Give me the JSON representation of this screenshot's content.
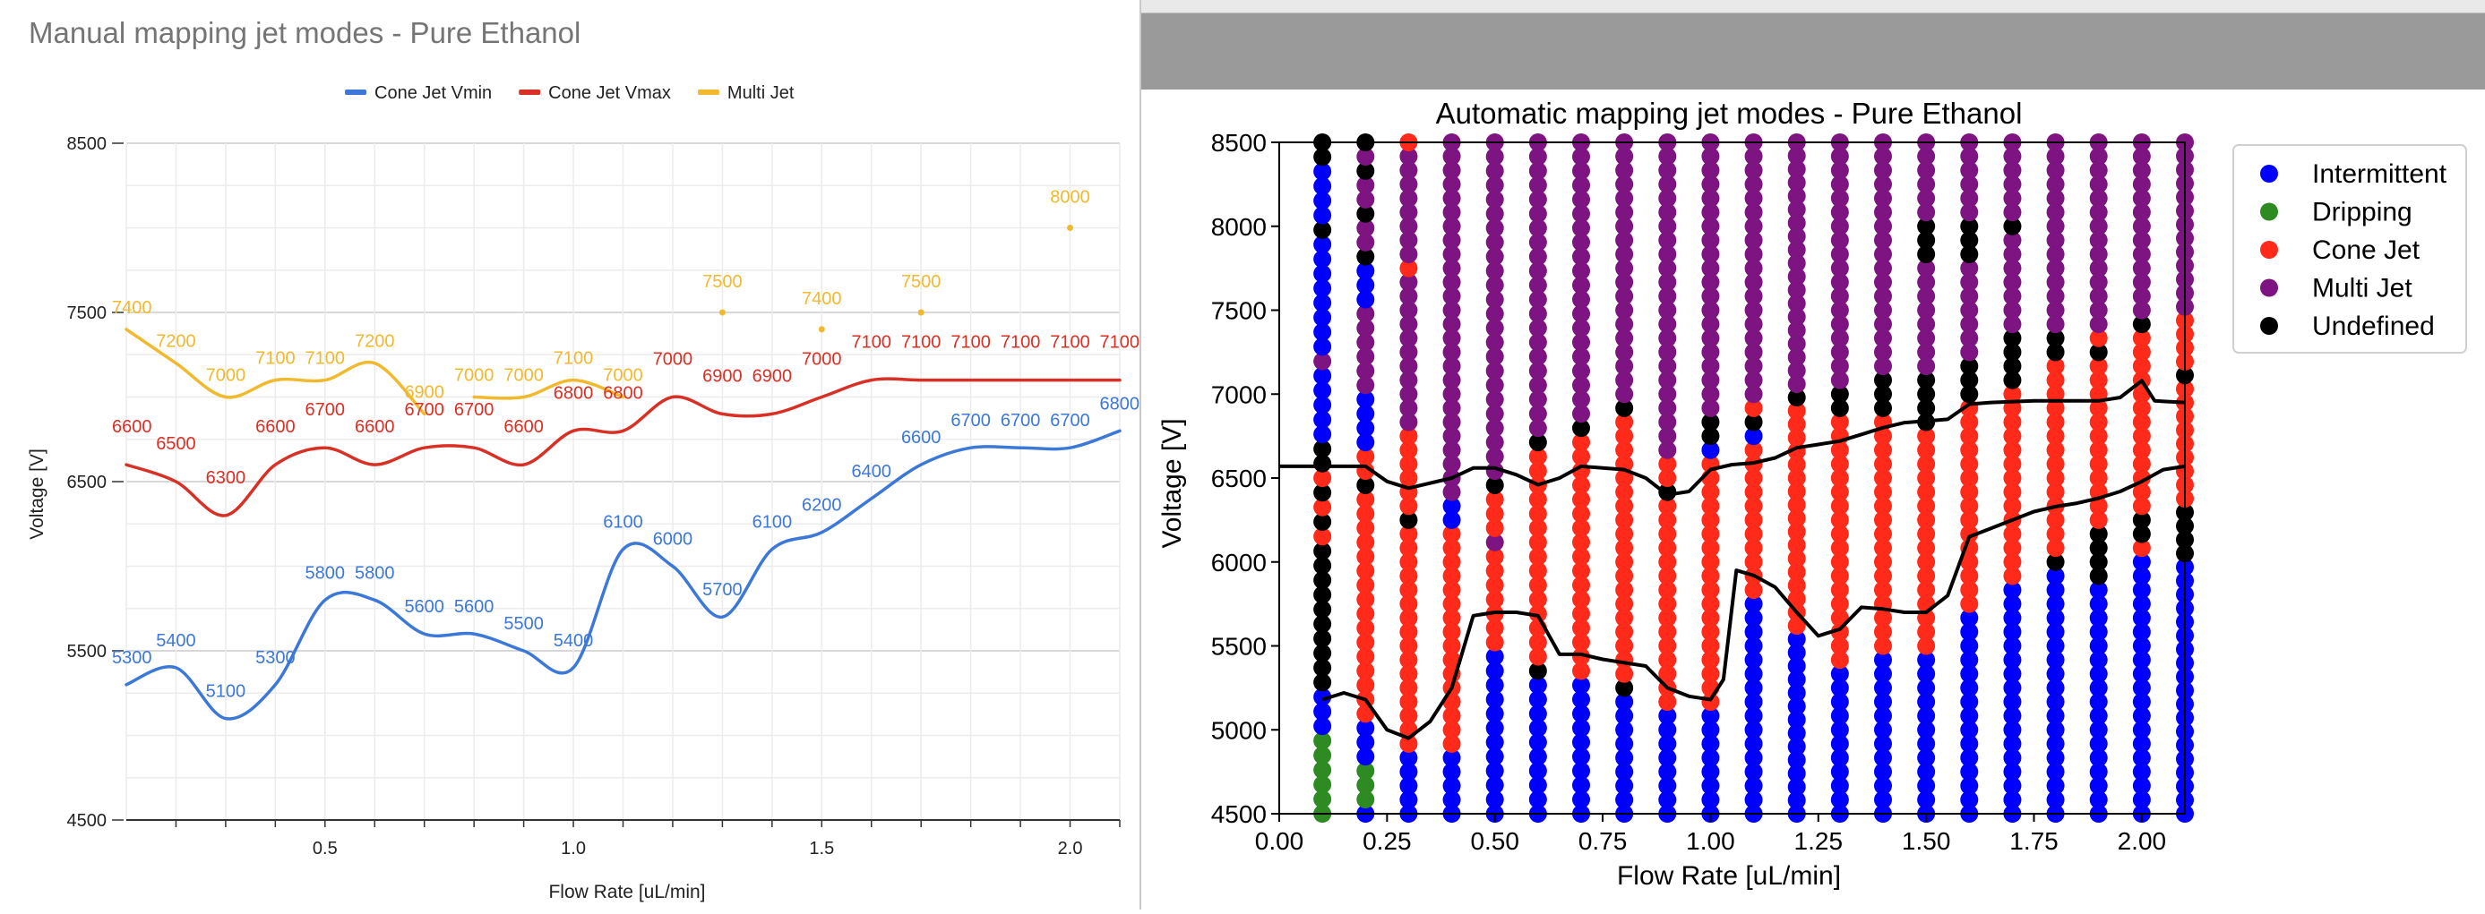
{
  "chart_data": [
    {
      "type": "line",
      "title": "Manual mapping jet modes - Pure Ethanol",
      "xlabel": "Flow Rate [uL/min]",
      "ylabel": "Voltage [V]",
      "xlim": [
        0.1,
        2.1
      ],
      "ylim": [
        4500,
        8500
      ],
      "xticks": [
        0.5,
        1.0,
        1.5,
        2.0
      ],
      "xtick_labels": [
        "0.5",
        "1.0",
        "1.5",
        "2.0"
      ],
      "yticks": [
        4500,
        5500,
        6500,
        7500,
        8500
      ],
      "ytick_labels": [
        "4500",
        "5500",
        "6500",
        "7500",
        "8500"
      ],
      "grid": true,
      "legend_position": "top",
      "series": [
        {
          "name": "Cone Jet Vmin",
          "color": "#3c78d8",
          "x": [
            0.1,
            0.2,
            0.3,
            0.4,
            0.5,
            0.6,
            0.7,
            0.8,
            0.9,
            1.0,
            1.1,
            1.2,
            1.3,
            1.4,
            1.5,
            1.6,
            1.7,
            1.8,
            1.9,
            2.0,
            2.1
          ],
          "values": [
            5300,
            5400,
            5100,
            5300,
            5800,
            5800,
            5600,
            5600,
            5500,
            5400,
            6100,
            6000,
            5700,
            6100,
            6200,
            6400,
            6600,
            6700,
            6700,
            6700,
            6800
          ]
        },
        {
          "name": "Cone Jet Vmax",
          "color": "#d93025",
          "x": [
            0.1,
            0.2,
            0.3,
            0.4,
            0.5,
            0.6,
            0.7,
            0.8,
            0.9,
            1.0,
            1.1,
            1.2,
            1.3,
            1.4,
            1.5,
            1.6,
            1.7,
            1.8,
            1.9,
            2.0,
            2.1
          ],
          "values": [
            6600,
            6500,
            6300,
            6600,
            6700,
            6600,
            6700,
            6700,
            6600,
            6800,
            6800,
            7000,
            6900,
            6900,
            7000,
            7100,
            7100,
            7100,
            7100,
            7100,
            7100
          ]
        },
        {
          "name": "Multi Jet",
          "color": "#f1b92e",
          "segments": [
            {
              "x": [
                0.1,
                0.2,
                0.3,
                0.4,
                0.5,
                0.6,
                0.7
              ],
              "values": [
                7400,
                7200,
                7000,
                7100,
                7100,
                7200,
                6900
              ]
            },
            {
              "x": [
                0.8,
                0.9,
                1.0,
                1.1
              ],
              "values": [
                7000,
                7000,
                7100,
                7000
              ]
            }
          ],
          "points": [
            {
              "x": 1.3,
              "value": 7500
            },
            {
              "x": 1.5,
              "value": 7400
            },
            {
              "x": 1.7,
              "value": 7500
            },
            {
              "x": 2.0,
              "value": 8000
            }
          ]
        }
      ]
    },
    {
      "type": "scatter",
      "title": "Automatic mapping jet modes - Pure Ethanol",
      "xlabel": "Flow Rate [uL/min]",
      "ylabel": "Voltage [V]",
      "xlim": [
        0.0,
        2.1
      ],
      "ylim": [
        4500,
        8500
      ],
      "xticks": [
        0.0,
        0.25,
        0.5,
        0.75,
        1.0,
        1.25,
        1.5,
        1.75,
        2.0
      ],
      "xtick_labels": [
        "0.00",
        "0.25",
        "0.50",
        "0.75",
        "1.00",
        "1.25",
        "1.50",
        "1.75",
        "2.00"
      ],
      "yticks": [
        4500,
        5000,
        5500,
        6000,
        6500,
        7000,
        7500,
        8000,
        8500
      ],
      "ytick_labels": [
        "4500",
        "5000",
        "5500",
        "6000",
        "6500",
        "7000",
        "7500",
        "8000",
        "8500"
      ],
      "grid": false,
      "legend_position": "outside right",
      "categories": [
        {
          "name": "Intermittent",
          "color": "#0000ff"
        },
        {
          "name": "Dripping",
          "color": "#2e8b22"
        },
        {
          "name": "Cone Jet",
          "color": "#ff2a1a"
        },
        {
          "name": "Multi Jet",
          "color": "#7e1481"
        },
        {
          "name": "Undefined",
          "color": "#000000"
        }
      ],
      "x_columns": [
        0.1,
        0.2,
        0.3,
        0.4,
        0.5,
        0.6,
        0.7,
        0.8,
        0.9,
        1.0,
        1.1,
        1.2,
        1.3,
        1.4,
        1.5,
        1.6,
        1.7,
        1.8,
        1.9,
        2.0,
        2.1
      ],
      "voltage_start": 4500,
      "voltage_step": 100,
      "column_codes": [
        "DDDDDDIIIUUUUUUUUUUCUCUCUUIIIIIMIIIIIIIIUIIIIUU",
        "IDDDIIICCCCCCCCCCCCCCCCUCCIIIIMMMMMMIIIUMMUMMUMU",
        "IIIIICCCCCCCCCCCCCCCCUCCCCCCMMMMMMMMMMMCMMMMMMMMC",
        "IIIIICCCCCCCCCCCCCCCCIIMMMMMMMMMMMMMMMMMMMMMMMMMM",
        "IIIIIIIIIIIICCCCCCCMCCCUMMMMMMMMMMMMMMMMMMMMMMMM",
        "IIIIIIIIIIUCCCCCCCCCCCCCCCUMMMMMMMMMMMMMMMMMMMMM",
        "IIIIIIIIIICCCCCCCCCCCCCCCCCUMMMMMMMMMMMMMMMMMMMM",
        "IIIIIIIIIUCCCCCCCCCCCCCCCCCCCUMMMMMMMMMMMMMMMMMMM",
        "IIIIIIIICCCCCCCCCCCCCCCUCCMMMMMMMMMMMMMMMMMMMMMMM",
        "IIIIIIIICCCCCCCCCCCCCCCCCCIUUMMMMMMMMMMMMMMMMMMMM",
        "IIIIIIIIIIIIIIIICCCCCCCCCCCIUCMMMMMMMMMMMMMMMMMMM",
        "IIIIIIIIIIIIIICCCCCCCCCCCCCCCCCUMMMMMMMMMMMMMMMMMMM",
        "IIIIIIIIIIICCCCCCCCCCCCCCCCCCUUMMMMMMMMMMMMMMMMMM",
        "IIIIIIIIIIIICCCCCCCCCCCCCCCCCUUUMMMMMMMMMMMMMMMMM",
        "IIIIIIIIIIIICCCCCCCCCCCCCCCCUUUUMMMMMMMMUUUMMMMMM",
        "IIIIIIIIIIIIIIICCCCCCCCCCCCCCCUUUMMMMMMMUUUMMMMMM",
        "IIIIIIIIIIIIIIIIICCCCCCCCCCCCCCUUUUMMMMMMMUMMMMMM",
        "IIIIIIIIIIIIIIIIIIUCCCCCCCCCCCCCCUUMMMMMMMMMMMMMM",
        "IIIIIIIIIIIIIIIIIUUUUCCCCCCCCCCCCUCMMMMMMMMMMMMMM",
        "IIIIIIIIIIIIIIIIIIICUUCCCCCCCCCCCCCUMMMMMMMMMMMMM",
        "IIIIIIIIIIIIIIIIIIIUUUUCCCCCCCCCUCCCCMMMMMMMMMMMMM"
      ],
      "boundary_lower": [
        {
          "x": 0.1,
          "y": 5180
        },
        {
          "x": 0.15,
          "y": 5220
        },
        {
          "x": 0.2,
          "y": 5180
        },
        {
          "x": 0.25,
          "y": 5000
        },
        {
          "x": 0.3,
          "y": 4950
        },
        {
          "x": 0.35,
          "y": 5050
        },
        {
          "x": 0.4,
          "y": 5250
        },
        {
          "x": 0.45,
          "y": 5680
        },
        {
          "x": 0.5,
          "y": 5700
        },
        {
          "x": 0.55,
          "y": 5700
        },
        {
          "x": 0.6,
          "y": 5680
        },
        {
          "x": 0.65,
          "y": 5450
        },
        {
          "x": 0.7,
          "y": 5450
        },
        {
          "x": 0.75,
          "y": 5420
        },
        {
          "x": 0.8,
          "y": 5400
        },
        {
          "x": 0.85,
          "y": 5380
        },
        {
          "x": 0.9,
          "y": 5250
        },
        {
          "x": 0.95,
          "y": 5200
        },
        {
          "x": 1.0,
          "y": 5180
        },
        {
          "x": 1.03,
          "y": 5300
        },
        {
          "x": 1.06,
          "y": 5950
        },
        {
          "x": 1.1,
          "y": 5920
        },
        {
          "x": 1.15,
          "y": 5850
        },
        {
          "x": 1.2,
          "y": 5700
        },
        {
          "x": 1.25,
          "y": 5560
        },
        {
          "x": 1.3,
          "y": 5600
        },
        {
          "x": 1.35,
          "y": 5730
        },
        {
          "x": 1.4,
          "y": 5720
        },
        {
          "x": 1.45,
          "y": 5700
        },
        {
          "x": 1.5,
          "y": 5700
        },
        {
          "x": 1.55,
          "y": 5800
        },
        {
          "x": 1.6,
          "y": 6150
        },
        {
          "x": 1.65,
          "y": 6200
        },
        {
          "x": 1.7,
          "y": 6250
        },
        {
          "x": 1.75,
          "y": 6300
        },
        {
          "x": 1.8,
          "y": 6330
        },
        {
          "x": 1.85,
          "y": 6350
        },
        {
          "x": 1.9,
          "y": 6380
        },
        {
          "x": 1.95,
          "y": 6420
        },
        {
          "x": 2.0,
          "y": 6480
        },
        {
          "x": 2.05,
          "y": 6550
        },
        {
          "x": 2.1,
          "y": 6570
        }
      ],
      "boundary_upper": [
        {
          "x": 0.0,
          "y": 6570
        },
        {
          "x": 0.2,
          "y": 6570
        },
        {
          "x": 0.25,
          "y": 6480
        },
        {
          "x": 0.3,
          "y": 6440
        },
        {
          "x": 0.4,
          "y": 6500
        },
        {
          "x": 0.45,
          "y": 6560
        },
        {
          "x": 0.5,
          "y": 6560
        },
        {
          "x": 0.55,
          "y": 6520
        },
        {
          "x": 0.6,
          "y": 6460
        },
        {
          "x": 0.65,
          "y": 6500
        },
        {
          "x": 0.7,
          "y": 6570
        },
        {
          "x": 0.8,
          "y": 6550
        },
        {
          "x": 0.85,
          "y": 6500
        },
        {
          "x": 0.9,
          "y": 6400
        },
        {
          "x": 0.95,
          "y": 6420
        },
        {
          "x": 1.0,
          "y": 6550
        },
        {
          "x": 1.05,
          "y": 6580
        },
        {
          "x": 1.1,
          "y": 6590
        },
        {
          "x": 1.15,
          "y": 6620
        },
        {
          "x": 1.2,
          "y": 6680
        },
        {
          "x": 1.25,
          "y": 6700
        },
        {
          "x": 1.3,
          "y": 6720
        },
        {
          "x": 1.35,
          "y": 6760
        },
        {
          "x": 1.4,
          "y": 6800
        },
        {
          "x": 1.45,
          "y": 6830
        },
        {
          "x": 1.5,
          "y": 6840
        },
        {
          "x": 1.55,
          "y": 6850
        },
        {
          "x": 1.6,
          "y": 6940
        },
        {
          "x": 1.65,
          "y": 6950
        },
        {
          "x": 1.75,
          "y": 6960
        },
        {
          "x": 1.85,
          "y": 6960
        },
        {
          "x": 1.9,
          "y": 6960
        },
        {
          "x": 1.95,
          "y": 6980
        },
        {
          "x": 2.0,
          "y": 7080
        },
        {
          "x": 2.03,
          "y": 6960
        },
        {
          "x": 2.1,
          "y": 6950
        }
      ]
    }
  ]
}
